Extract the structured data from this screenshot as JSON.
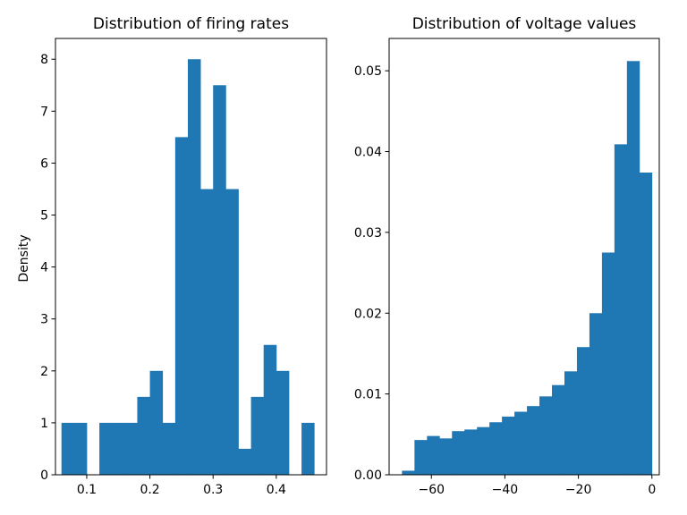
{
  "chart_data": [
    {
      "type": "bar",
      "title": "Distribution of firing rates",
      "xlabel": "",
      "ylabel": "Density",
      "xlim": [
        0.0505,
        0.4795
      ],
      "ylim": [
        0,
        8.4
      ],
      "x_ticks": [
        0.1,
        0.2,
        0.3,
        0.4
      ],
      "x_tick_labels": [
        "0.1",
        "0.2",
        "0.3",
        "0.4"
      ],
      "y_ticks": [
        0,
        1,
        2,
        3,
        4,
        5,
        6,
        7,
        8
      ],
      "y_tick_labels": [
        "0",
        "1",
        "2",
        "3",
        "4",
        "5",
        "6",
        "7",
        "8"
      ],
      "color": "#1f77b4",
      "bin_edges": [
        0.06,
        0.08,
        0.1,
        0.12,
        0.14,
        0.16,
        0.18,
        0.2,
        0.22,
        0.24,
        0.26,
        0.28,
        0.3,
        0.32,
        0.34,
        0.36,
        0.38,
        0.4,
        0.42,
        0.44,
        0.46
      ],
      "values": [
        1,
        1,
        0,
        1,
        1,
        1,
        1.5,
        2,
        1,
        6.5,
        8,
        5.5,
        7.5,
        5.5,
        0.5,
        1.5,
        2.5,
        2,
        0,
        1
      ]
    },
    {
      "type": "bar",
      "title": "Distribution of voltage values",
      "xlabel": "",
      "ylabel": "",
      "xlim": [
        -71.5,
        2
      ],
      "ylim": [
        0,
        0.054
      ],
      "x_ticks": [
        -60,
        -40,
        -20,
        0
      ],
      "x_tick_labels": [
        "−60",
        "−40",
        "−20",
        "0"
      ],
      "y_ticks": [
        0,
        0.01,
        0.02,
        0.03,
        0.04,
        0.05
      ],
      "y_tick_labels": [
        "0.00",
        "0.01",
        "0.02",
        "0.03",
        "0.04",
        "0.05"
      ],
      "color": "#1f77b4",
      "bin_edges": [
        -68.0,
        -64.6,
        -61.2,
        -57.8,
        -54.4,
        -51.0,
        -47.6,
        -44.2,
        -40.8,
        -37.4,
        -34.0,
        -30.6,
        -27.2,
        -23.8,
        -20.4,
        -17.0,
        -13.6,
        -10.2,
        -6.8,
        -3.4,
        0.0
      ],
      "values": [
        0.0005,
        0.0043,
        0.0048,
        0.0045,
        0.0054,
        0.0056,
        0.0059,
        0.0065,
        0.0072,
        0.0078,
        0.0085,
        0.0097,
        0.0111,
        0.0128,
        0.0158,
        0.02,
        0.0275,
        0.0409,
        0.0512,
        0.0374
      ]
    }
  ]
}
